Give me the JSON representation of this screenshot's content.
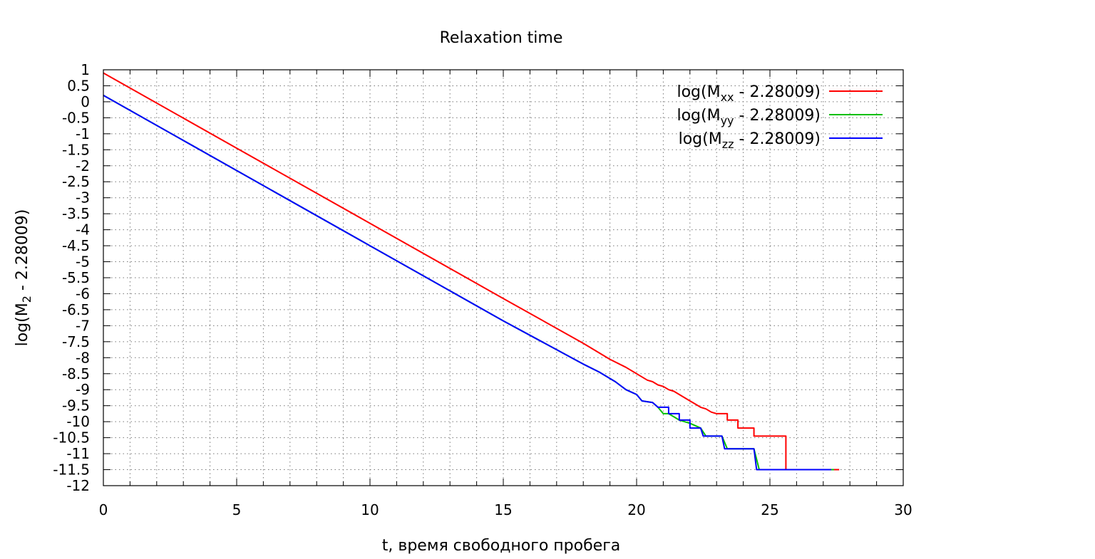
{
  "chart_data": {
    "type": "line",
    "title": "Relaxation time",
    "xlabel": "t, время свободного пробега",
    "ylabel": {
      "main": "log(M",
      "sub": "2",
      "tail": " - 2.28009)"
    },
    "xlim": [
      0,
      30
    ],
    "ylim": [
      -12,
      1
    ],
    "xticks": [
      0,
      5,
      10,
      15,
      20,
      25,
      30
    ],
    "yticks": [
      1,
      0.5,
      0,
      -0.5,
      -1,
      -1.5,
      -2,
      -2.5,
      -3,
      -3.5,
      -4,
      -4.5,
      -5,
      -5.5,
      -6,
      -6.5,
      -7,
      -7.5,
      -8,
      -8.5,
      -9,
      -9.5,
      -10,
      -10.5,
      -11,
      -11.5,
      -12
    ],
    "xminor": [
      1,
      2,
      3,
      4,
      6,
      7,
      8,
      9,
      11,
      12,
      13,
      14,
      16,
      17,
      18,
      19,
      21,
      22,
      23,
      24,
      26,
      27,
      28,
      29
    ],
    "grid": true,
    "legend_position": "top-right",
    "colors": {
      "red": "#ff0000",
      "green": "#00c000",
      "blue": "#0000ff"
    },
    "series": [
      {
        "key": "xx",
        "legend": {
          "pre": "log(M",
          "sub": "xx",
          "post": " - 2.28009)"
        },
        "color": "#ff0000",
        "x": [
          0,
          5,
          10,
          15,
          18,
          19,
          19.6,
          20.0,
          20.4,
          20.6,
          20.8,
          21.0,
          21.2,
          21.4,
          21.6,
          21.8,
          22.0,
          22.2,
          22.4,
          22.6,
          22.8,
          23.0,
          23.4,
          23.4,
          23.8,
          23.8,
          24.4,
          24.4,
          25.6,
          25.6,
          27.6
        ],
        "y": [
          0.9,
          -1.45,
          -3.8,
          -6.15,
          -7.55,
          -8.05,
          -8.3,
          -8.5,
          -8.7,
          -8.75,
          -8.85,
          -8.9,
          -9.0,
          -9.05,
          -9.15,
          -9.25,
          -9.35,
          -9.45,
          -9.55,
          -9.6,
          -9.7,
          -9.75,
          -9.75,
          -9.95,
          -9.95,
          -10.2,
          -10.2,
          -10.45,
          -10.45,
          -11.5,
          -11.5
        ]
      },
      {
        "key": "yy",
        "legend": {
          "pre": "log(M",
          "sub": "yy",
          "post": " - 2.28009)"
        },
        "color": "#00c000",
        "x": [
          0,
          5,
          10,
          15,
          18,
          18.6,
          19.2,
          19.6,
          20.0,
          20.2,
          20.6,
          20.8,
          21.0,
          21.2,
          21.6,
          22.0,
          22.4,
          22.6,
          23.2,
          23.4,
          24.4,
          24.6,
          27.4
        ],
        "y": [
          0.2,
          -2.15,
          -4.5,
          -6.85,
          -8.2,
          -8.45,
          -8.75,
          -9.0,
          -9.15,
          -9.35,
          -9.4,
          -9.55,
          -9.75,
          -9.75,
          -9.95,
          -10.05,
          -10.2,
          -10.45,
          -10.45,
          -10.85,
          -10.85,
          -11.5,
          -11.5
        ]
      },
      {
        "key": "zz",
        "legend": {
          "pre": "log(M",
          "sub": "zz",
          "post": " - 2.28009)"
        },
        "color": "#0000ff",
        "x": [
          0,
          5,
          10,
          15,
          18,
          18.6,
          19.2,
          19.6,
          20.0,
          20.2,
          20.6,
          20.8,
          21.2,
          21.2,
          21.6,
          21.6,
          22.0,
          22.0,
          22.4,
          22.5,
          23.2,
          23.3,
          24.4,
          24.5,
          27.3
        ],
        "y": [
          0.2,
          -2.15,
          -4.5,
          -6.85,
          -8.2,
          -8.45,
          -8.75,
          -9.0,
          -9.15,
          -9.35,
          -9.4,
          -9.55,
          -9.55,
          -9.75,
          -9.75,
          -9.95,
          -9.95,
          -10.2,
          -10.2,
          -10.45,
          -10.45,
          -10.85,
          -10.85,
          -11.5,
          -11.5
        ]
      }
    ]
  }
}
